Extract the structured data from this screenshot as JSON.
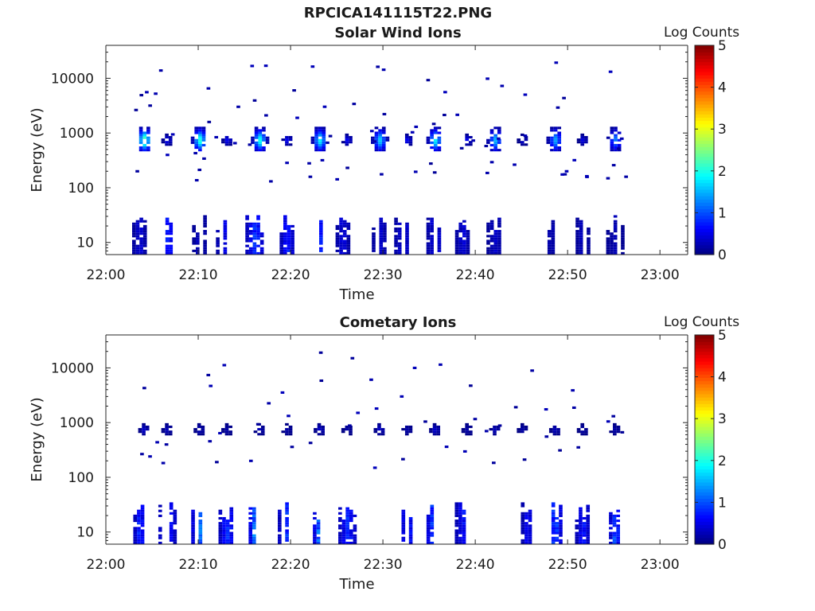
{
  "figure": {
    "title": "RPCICA141115T22.PNG"
  },
  "chart_data": [
    {
      "type": "heatmap",
      "title": "Solar Wind Ions",
      "xlabel": "Time",
      "ylabel": "Energy (eV)",
      "x_ticks": [
        "22:00",
        "22:10",
        "22:20",
        "22:30",
        "22:40",
        "22:50",
        "23:00"
      ],
      "x_range": [
        "22:00",
        "23:03"
      ],
      "y_scale": "log",
      "y_ticks": [
        10,
        100,
        1000,
        10000
      ],
      "y_range": [
        6,
        40000
      ],
      "colorbar": {
        "label": "Log Counts",
        "min": 0,
        "max": 5,
        "ticks": [
          0,
          1,
          2,
          3,
          4,
          5
        ],
        "colormap": "jet"
      },
      "grid": false,
      "features": [
        {
          "kind": "solar_wind_peaks",
          "energy": 700,
          "times": [
            "22:04",
            "22:06.5",
            "22:10",
            "22:13",
            "22:16.5",
            "22:19.5",
            "22:23",
            "22:26",
            "22:29.5",
            "22:32.5",
            "22:35.5",
            "22:39",
            "22:42",
            "22:45",
            "22:48.5",
            "22:51.5",
            "22:55"
          ],
          "peak_log_counts": [
            2.3,
            0.6,
            2.0,
            0.6,
            1.9,
            0.6,
            1.8,
            0.6,
            1.6,
            0.6,
            1.8,
            0.6,
            1.5,
            0.4,
            1.4,
            0.5,
            1.2
          ]
        },
        {
          "kind": "low_energy_bands",
          "energy_range": [
            6,
            30
          ],
          "times": [
            "22:03.5",
            "22:06.5",
            "22:10",
            "22:12.5",
            "22:16",
            "22:19.5",
            "22:23",
            "22:25.5",
            "22:29.5",
            "22:32",
            "22:35.5",
            "22:38.5",
            "22:42",
            "22:48",
            "22:51.5",
            "22:55"
          ],
          "peak_log_counts": [
            0.5,
            0.9,
            0.4,
            0.7,
            1.0,
            0.9,
            0.9,
            0.6,
            0.5,
            0.6,
            0.6,
            0.5,
            0.4,
            0.3,
            0.4,
            0.3
          ]
        }
      ]
    },
    {
      "type": "heatmap",
      "title": "Cometary Ions",
      "xlabel": "Time",
      "ylabel": "Energy (eV)",
      "x_ticks": [
        "22:00",
        "22:10",
        "22:20",
        "22:30",
        "22:40",
        "22:50",
        "23:00"
      ],
      "x_range": [
        "22:00",
        "23:03"
      ],
      "y_scale": "log",
      "y_ticks": [
        10,
        100,
        1000,
        10000
      ],
      "y_range": [
        6,
        40000
      ],
      "colorbar": {
        "label": "Log Counts",
        "min": 0,
        "max": 5,
        "ticks": [
          0,
          1,
          2,
          3,
          4,
          5
        ],
        "colormap": "jet"
      },
      "grid": false,
      "features": [
        {
          "kind": "solar_wind_leakage",
          "energy": 700,
          "times": [
            "22:04",
            "22:06.5",
            "22:10",
            "22:13",
            "22:16.5",
            "22:19.5",
            "22:23",
            "22:26",
            "22:29.5",
            "22:32.5",
            "22:35.5",
            "22:39",
            "22:42",
            "22:45",
            "22:48.5",
            "22:51.5",
            "22:55"
          ],
          "peak_log_counts": [
            0.4,
            0.3,
            0.3,
            0.2,
            0.3,
            0.2,
            0.4,
            0.2,
            0.4,
            0.2,
            0.4,
            0.2,
            0.3,
            0.2,
            0.3,
            0.2,
            0.2
          ]
        },
        {
          "kind": "low_energy_bands",
          "energy_range": [
            6,
            35
          ],
          "times": [
            "22:03.5",
            "22:06.5",
            "22:10",
            "22:13",
            "22:16",
            "22:19.5",
            "22:23",
            "22:26",
            "22:29.5",
            "22:32.5",
            "22:35.5",
            "22:38.5",
            "22:42",
            "22:45.5",
            "22:48.5",
            "22:51.5",
            "22:55"
          ],
          "peak_log_counts": [
            1.0,
            1.0,
            1.4,
            1.0,
            1.6,
            1.0,
            1.5,
            1.0,
            1.7,
            0.9,
            1.4,
            0.8,
            1.2,
            0.7,
            1.2,
            0.8,
            1.2
          ]
        }
      ]
    }
  ]
}
